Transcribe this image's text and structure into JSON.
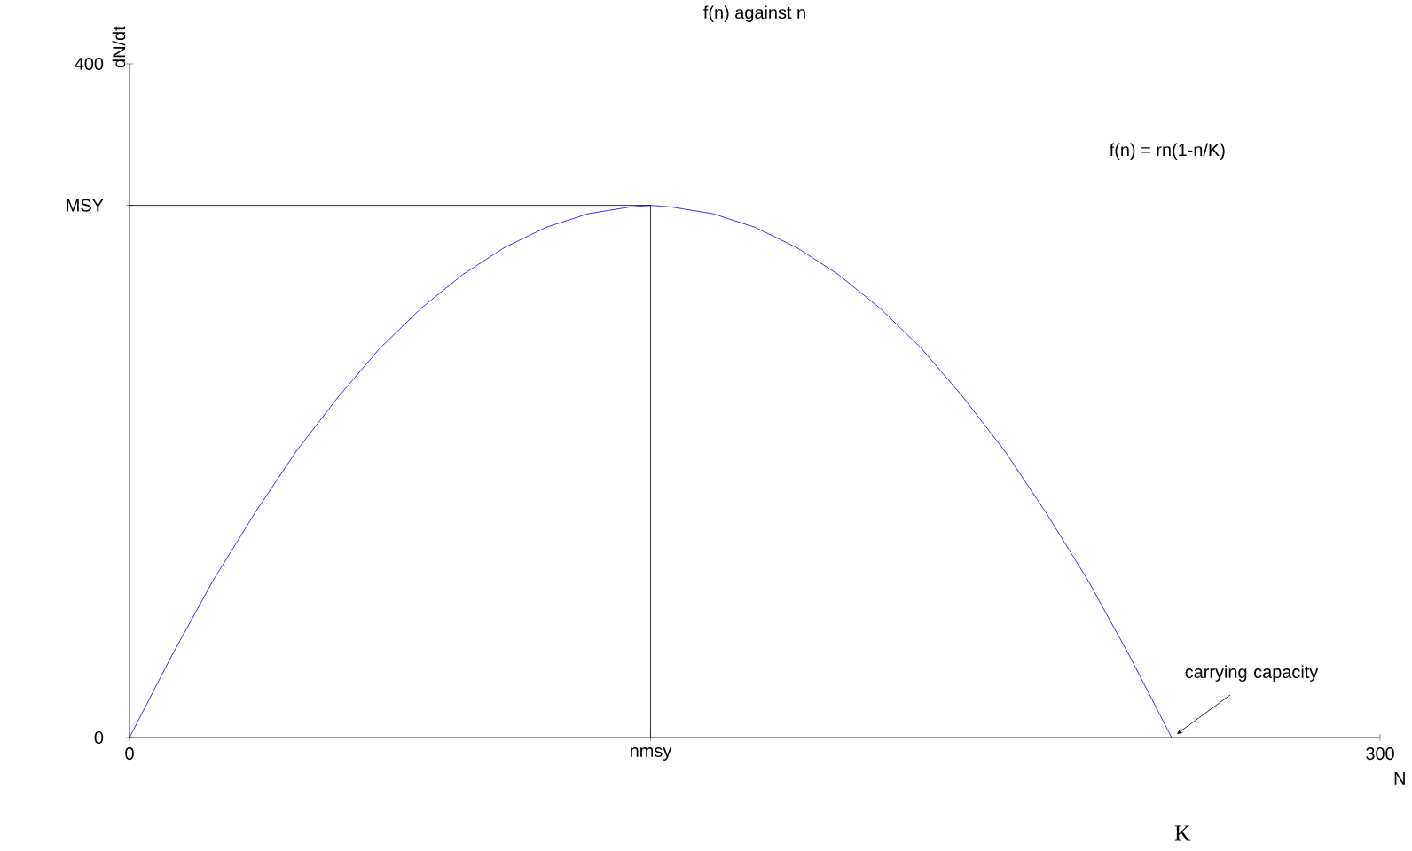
{
  "chart_data": {
    "type": "line",
    "title": "f(n) against n",
    "xlabel": "N",
    "ylabel": "dN/dt",
    "xlim": [
      0,
      300
    ],
    "ylim": [
      0,
      400
    ],
    "xticks": [
      0,
      {
        "value": 125,
        "label": "nmsy"
      },
      300
    ],
    "yticks": [
      0,
      {
        "value": 316,
        "label": "MSY"
      },
      400
    ],
    "series": [
      {
        "color": "#0000ff",
        "x": [
          0,
          10,
          20,
          30,
          40,
          50,
          60,
          70,
          80,
          90,
          100,
          110,
          120,
          125,
          130,
          140,
          150,
          160,
          170,
          180,
          190,
          200,
          210,
          220,
          230,
          240,
          250
        ],
        "values": [
          0,
          48,
          93,
          133,
          170,
          202,
          231,
          255,
          275,
          291,
          303,
          311,
          315,
          316,
          315,
          311,
          303,
          291,
          275,
          255,
          231,
          202,
          170,
          133,
          93,
          48,
          0
        ]
      },
      {
        "color": "#000000",
        "x": [
          0,
          125,
          125
        ],
        "values": [
          316,
          316,
          0
        ]
      }
    ],
    "annotations": [
      "f(n) = rn(1-n/K)",
      {
        "text": "carrying capacity",
        "x": 250,
        "y": 0
      },
      "K"
    ],
    "grid": false,
    "marker": "none",
    "line_style": "solid"
  }
}
